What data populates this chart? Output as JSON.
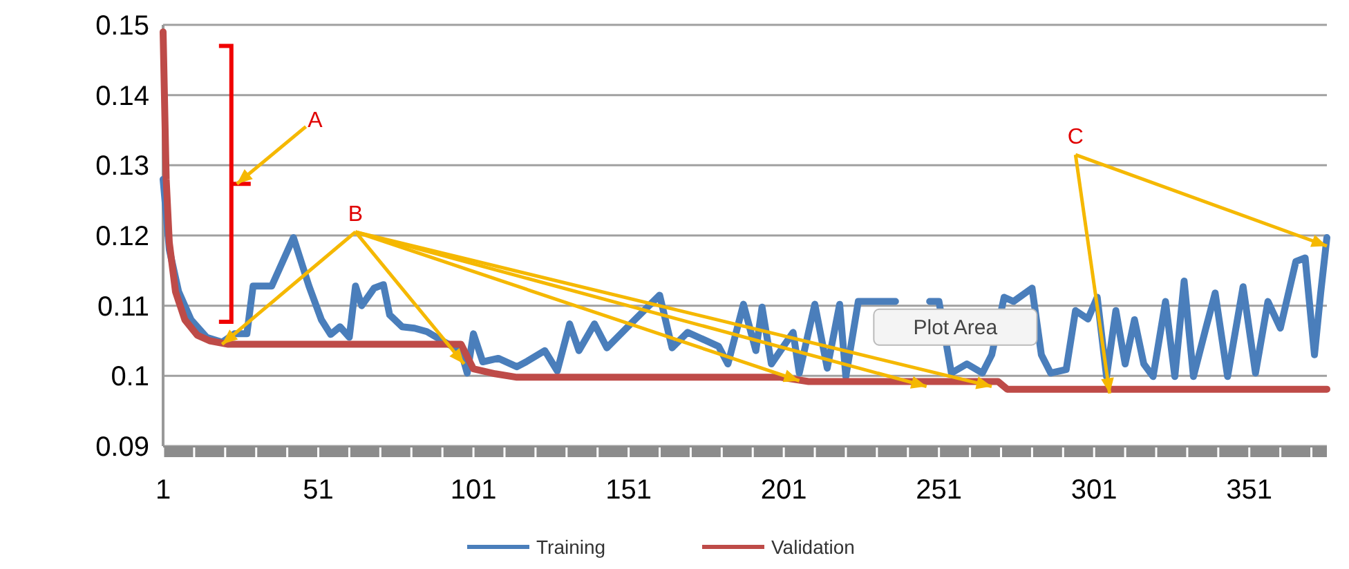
{
  "chart_data": {
    "type": "line",
    "xlim": [
      1,
      376
    ],
    "xticks": [
      1,
      51,
      101,
      151,
      201,
      251,
      301,
      351
    ],
    "ylim": [
      0.09,
      0.15
    ],
    "yticks": [
      0.09,
      0.1,
      0.11,
      0.12,
      0.13,
      0.14,
      0.15
    ],
    "grid": "y",
    "legend": "bottom",
    "line_style": "solid",
    "annotations": [
      "A",
      {
        "text": "B",
        "x": 20,
        "y": 0.1045
      },
      {
        "text": "C",
        "x": 376,
        "y": 0.1185
      },
      "Plot Area"
    ],
    "series": [
      {
        "name": "Training",
        "color": "#4a7ebb",
        "x": [
          1,
          3,
          6,
          10,
          15,
          20,
          24,
          28,
          30,
          36,
          43,
          48,
          52,
          55,
          58,
          61,
          63,
          65,
          69,
          72,
          74,
          78,
          82,
          86,
          91,
          97,
          99,
          101,
          104,
          109,
          115,
          118,
          124,
          128,
          132,
          135,
          140,
          144,
          153,
          161,
          165,
          170,
          180,
          183,
          188,
          192,
          194,
          197,
          204,
          206,
          211,
          215,
          219,
          221,
          225,
          237,
          244,
          248,
          251,
          255,
          260,
          265,
          268,
          272,
          275,
          281,
          284,
          287,
          292,
          295,
          299,
          302,
          305,
          308,
          311,
          314,
          317,
          320,
          324,
          327,
          330,
          333,
          337,
          340,
          344,
          349,
          353,
          357,
          361,
          366,
          369,
          372,
          374,
          376
        ],
        "values": [
          0.128,
          0.118,
          0.112,
          0.108,
          0.1055,
          0.1048,
          0.106,
          0.106,
          0.1128,
          0.1128,
          0.1197,
          0.1128,
          0.108,
          0.1059,
          0.107,
          0.1055,
          0.1128,
          0.11,
          0.1125,
          0.113,
          0.1087,
          0.107,
          0.1068,
          0.1063,
          0.105,
          0.1035,
          0.1004,
          0.106,
          0.102,
          0.1025,
          0.1013,
          0.102,
          0.1036,
          0.1007,
          0.1074,
          0.1036,
          0.1074,
          0.104,
          0.108,
          0.1115,
          0.104,
          0.1062,
          0.1042,
          0.1017,
          0.1102,
          0.1036,
          0.1098,
          0.1017,
          0.1062,
          0.1004,
          0.1102,
          0.1011,
          0.1102,
          0.0999,
          0.1106,
          0.1106,
          null,
          0.1106,
          0.1106,
          0.1004,
          0.1017,
          0.1004,
          0.103,
          0.1112,
          0.1106,
          0.1125,
          0.103,
          0.1004,
          0.1009,
          0.1093,
          0.1081,
          0.1112,
          0.0999,
          0.1093,
          0.1017,
          0.108,
          0.1017,
          0.0999,
          0.1106,
          0.0999,
          0.1135,
          0.0999,
          0.1068,
          0.1118,
          0.0999,
          0.1127,
          0.1004,
          0.1106,
          0.1068,
          0.1163,
          0.1168,
          0.103,
          0.1118,
          0.1197
        ]
      },
      {
        "name": "Validation",
        "color": "#be4b48",
        "x": [
          1,
          2,
          3,
          5,
          8,
          12,
          16,
          22,
          97,
          101,
          108,
          115,
          200,
          209,
          270,
          273,
          376
        ],
        "values": [
          0.149,
          0.128,
          0.119,
          0.112,
          0.108,
          0.1058,
          0.105,
          0.1045,
          0.1045,
          0.101,
          0.1003,
          0.0998,
          0.0998,
          0.0992,
          0.0992,
          0.0981,
          0.0981
        ]
      }
    ]
  }
}
